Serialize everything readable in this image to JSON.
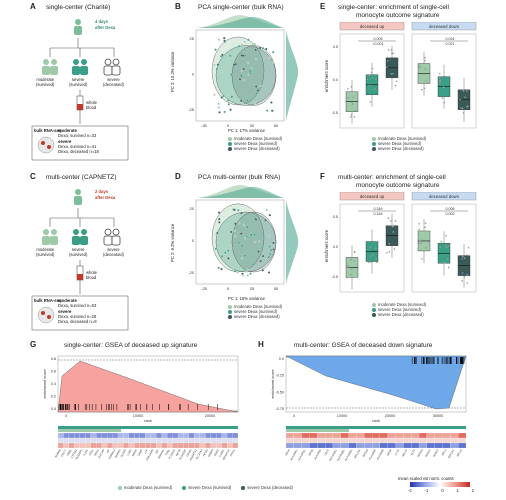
{
  "panels": {
    "A": {
      "letter": "A",
      "title": "single-center (Charité)",
      "days": "4 days",
      "after": "after Dexa",
      "groups": [
        "moderate\n(survived)",
        "severe\n(survived)",
        "severe\n(deceased)"
      ],
      "whole_blood": "whole\nblood",
      "box_title": "bulk RNA-seq",
      "lines": [
        "moderate",
        "Dexa, survived n=33",
        "severe",
        "Dexa, survived n=41",
        "Dexa, deceased n=18"
      ]
    },
    "B": {
      "letter": "B",
      "title": "PCA single-center (bulk RNA)",
      "xlabel": "PC 1: 17% variance",
      "ylabel": "PC 2: 10.2% variance",
      "xticks": [
        "-30",
        "0",
        "30",
        "60"
      ],
      "yticks": [
        "25",
        "0",
        "-25"
      ]
    },
    "C": {
      "letter": "C",
      "title": "multi-center (CAPNETZ)",
      "days": "2 days",
      "after": "after Dexa",
      "groups": [
        "moderate\n(survived)",
        "severe\n(survived)",
        "severe\n(deceased)"
      ],
      "whole_blood": "whole\nblood",
      "box_title": "bulk RNA-seq",
      "lines": [
        "moderate",
        "Dexa, survived n=53",
        "severe",
        "Dexa, survived n=26",
        "Dexa, deceased n=8"
      ]
    },
    "D": {
      "letter": "D",
      "title": "PCA multi-center (bulk RNA)",
      "xlabel": "PC 1: 16% variance",
      "ylabel": "PC 2: 9.2% variance",
      "xticks": [
        "-25",
        "0",
        "25",
        "50"
      ],
      "yticks": [
        "20",
        "0",
        "-20"
      ]
    },
    "E": {
      "letter": "E",
      "title": "single-center: enrichment of single-cell",
      "title2": "monocyte outcome signature",
      "strip_left": "deceased up",
      "strip_right": "deceased down",
      "ylabel": "enrichment score",
      "p_left": [
        "0.005",
        "<0.001"
      ],
      "p_right": [
        "0.024",
        "0.021"
      ],
      "yticks": [
        "0.5",
        "0.0",
        "-0.5"
      ]
    },
    "F": {
      "letter": "F",
      "title": "multi-center: enrichment of single-cell",
      "title2": "monocyte outcome signature",
      "strip_left": "deceased up",
      "strip_right": "deceased down",
      "ylabel": "enrichment score",
      "p_left": [
        "0.349",
        "0.164"
      ],
      "p_right": [
        "0.006",
        "0.002"
      ],
      "yticks": [
        "0.5",
        "0.0",
        "-0.5"
      ]
    },
    "G": {
      "letter": "G",
      "title": "single-center: GSEA of deceased up signature",
      "ylabel": "enrichment score",
      "xlabel": "rank",
      "yticks": [
        "0.8",
        "0.6",
        "0.4",
        "0.2",
        "0.0"
      ],
      "xticks": [
        "0",
        "10000",
        "20000"
      ],
      "genes": [
        "S100A8",
        "CD177",
        "VNN1",
        "CYP1B1",
        "MCEMP1",
        "IL1R2",
        "CES1",
        "ARG1",
        "CLEC4D",
        "HP",
        "S100A12",
        "S100A9",
        "OLFM4",
        "LCN2",
        "MMP8",
        "CAMP",
        "LTF",
        "CEACAM8",
        "BPI",
        "MS4A4A",
        "TCN1",
        "FCGR1A",
        "RETN",
        "ALOX5AP",
        "CD163",
        "ADAMTS2",
        "SLC37A3",
        "HPGD",
        "FKBP5",
        "IRAK3",
        "IL18R1",
        "ZDHHC19",
        "TPST1"
      ]
    },
    "H": {
      "letter": "H",
      "title": "multi-center: GSEA of deceased down signature",
      "ylabel": "enrichment score",
      "xlabel": "rank",
      "yticks": [
        "0.0",
        "-0.25",
        "-0.50",
        "-0.75"
      ],
      "xticks": [
        "0",
        "10000",
        "20000",
        "30000"
      ],
      "genes": [
        "RPL8",
        "HLA-DPA1",
        "HLA-DPB1",
        "RPS5",
        "HLA-DRA",
        "CD74",
        "HLA-DQA1",
        "HLA-DQB1",
        "HLA-DRB1",
        "RPL13A",
        "RPS18",
        "HLA-DMA",
        "HLA-DMB",
        "RPS8",
        "CIITA",
        "RPL29",
        "KLF2",
        "RPS15",
        "RPS12",
        "RPS23",
        "RPL3",
        "EEF1A1",
        "RPL13"
      ]
    }
  },
  "legend": {
    "moderate": "moderate Dexa (survived)",
    "survived": "severe Dexa (survived)",
    "deceased": "severe Dexa (deceased)"
  },
  "colorbar": {
    "title": "mean scaled vst norm. counts",
    "ticks": [
      "-2",
      "-1",
      "0",
      "1",
      "2"
    ]
  },
  "colors": {
    "moderate": "#9ecaa9",
    "survived": "#3b9e86",
    "deceased": "#3a5a5a",
    "up_fill": "#f6a3a0",
    "down_fill": "#6fa8e8",
    "strip_up": "#f4c7c3",
    "strip_down": "#c6dbf2"
  }
}
